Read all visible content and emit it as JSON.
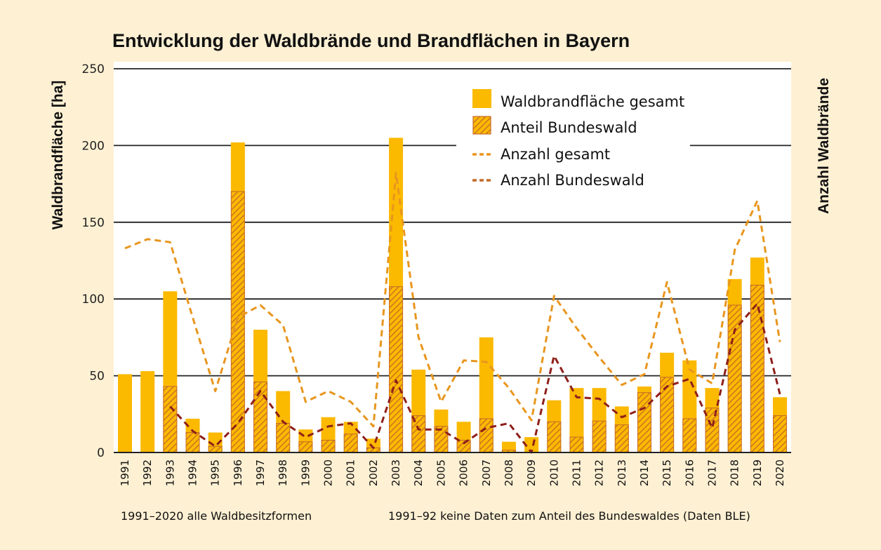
{
  "chart_data": {
    "type": "bar",
    "title": "Entwicklung der Waldbrände und Brandflächen in Bayern",
    "ylabel": "Waldbrandfläche [ha]",
    "ylabel_right": "Anzahl Waldbrände",
    "xlabel": "",
    "ylim": [
      0,
      250
    ],
    "yticks": [
      0,
      50,
      100,
      150,
      200,
      250
    ],
    "grid": true,
    "legend_position": "top-right",
    "categories": [
      "1991",
      "1992",
      "1993",
      "1994",
      "1995",
      "1996",
      "1997",
      "1998",
      "1999",
      "2000",
      "2001",
      "2002",
      "2003",
      "2004",
      "2005",
      "2006",
      "2007",
      "2008",
      "2009",
      "2010",
      "2011",
      "2012",
      "2013",
      "2014",
      "2015",
      "2016",
      "2017",
      "2018",
      "2019",
      "2020"
    ],
    "series": [
      {
        "name": "Waldbrandfläche gesamt",
        "kind": "bar",
        "color": "#FBB900",
        "values": [
          51,
          53,
          105,
          22,
          13,
          202,
          80,
          40,
          15,
          23,
          20,
          9,
          205,
          54,
          28,
          20,
          75,
          7,
          10,
          34,
          42,
          42,
          30,
          43,
          65,
          60,
          42,
          113,
          127,
          36
        ]
      },
      {
        "name": "Anteil Bundeswald",
        "kind": "bar-hatched",
        "color": "#C46A28",
        "values": [
          null,
          null,
          43,
          13,
          4,
          170,
          46,
          19,
          7,
          8,
          12,
          3,
          108,
          24,
          17,
          8,
          22,
          1.5,
          0,
          20,
          10,
          20.5,
          18,
          39,
          49,
          22,
          29,
          96,
          109,
          24
        ]
      },
      {
        "name": "Anzahl gesamt",
        "kind": "line-dashed",
        "color": "#E8961E",
        "values": [
          133,
          139,
          137,
          88,
          40,
          88,
          96,
          83,
          33,
          40,
          33,
          17,
          182,
          75,
          33,
          60,
          59,
          42,
          21,
          102,
          81,
          62,
          44,
          51,
          111,
          54,
          45,
          132,
          164,
          72
        ]
      },
      {
        "name": "Anzahl Bundeswald",
        "kind": "line-dashed",
        "color": "#8E1F1A",
        "values": [
          null,
          null,
          30,
          14,
          4,
          19,
          40,
          20,
          10,
          17,
          19,
          3,
          47,
          15,
          15,
          6,
          16,
          19,
          0,
          63,
          36,
          35,
          23,
          29,
          43,
          48,
          16,
          80,
          97,
          38
        ]
      }
    ],
    "notes": [
      "1991–2020 alle Waldbesitzformen",
      "1991–92 keine Daten zum Anteil des Bundeswaldes (Daten BLE)"
    ]
  }
}
